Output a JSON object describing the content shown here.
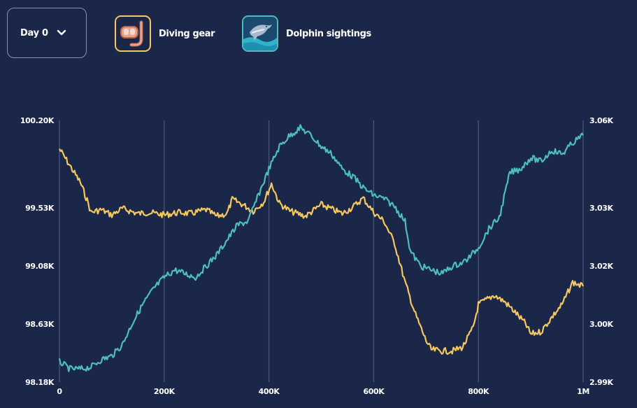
{
  "controls": {
    "day_label": "Day 0"
  },
  "legend": [
    {
      "label": "Diving gear",
      "icon": "snorkel-mask-icon",
      "color": "#f5c75e"
    },
    {
      "label": "Dolphin sightings",
      "icon": "dolphin-icon",
      "color": "#4dbdbd"
    }
  ],
  "chart_data": {
    "type": "line",
    "title": "",
    "xlabel": "",
    "ylabel_left": "",
    "ylabel_right": "",
    "x_ticks": [
      "0",
      "200K",
      "400K",
      "600K",
      "800K",
      "1M"
    ],
    "xlim": [
      0,
      1000000
    ],
    "left_ticks": [
      "100.20K",
      "99.53K",
      "99.08K",
      "98.63K",
      "98.18K"
    ],
    "right_ticks": [
      "3.06K",
      "3.03K",
      "3.02K",
      "3.00K",
      "2.99K"
    ],
    "grid": "vertical",
    "series": [
      {
        "name": "Diving gear",
        "axis": "left",
        "color": "#f5c75e",
        "x": [
          0,
          20000,
          40000,
          55000,
          60000,
          80000,
          100000,
          120000,
          150000,
          170000,
          200000,
          230000,
          250000,
          280000,
          300000,
          320000,
          330000,
          350000,
          370000,
          390000,
          405000,
          420000,
          440000,
          470000,
          500000,
          540000,
          560000,
          580000,
          600000,
          620000,
          640000,
          660000,
          680000,
          700000,
          710000,
          730000,
          750000,
          770000,
          790000,
          800000,
          830000,
          850000,
          870000,
          890000,
          900000,
          920000,
          940000,
          960000,
          980000,
          1000000
        ],
        "y": [
          99.98,
          99.85,
          99.72,
          99.56,
          99.49,
          99.51,
          99.47,
          99.52,
          99.48,
          99.49,
          99.47,
          99.49,
          99.48,
          99.51,
          99.46,
          99.48,
          99.59,
          99.55,
          99.5,
          99.57,
          99.71,
          99.56,
          99.5,
          99.46,
          99.55,
          99.48,
          99.53,
          99.6,
          99.49,
          99.42,
          99.25,
          98.95,
          98.7,
          98.5,
          98.43,
          98.42,
          98.42,
          98.45,
          98.6,
          98.78,
          98.85,
          98.8,
          98.72,
          98.63,
          98.55,
          98.57,
          98.68,
          98.78,
          98.95,
          98.92
        ]
      },
      {
        "name": "Dolphin sightings",
        "axis": "right",
        "color": "#4dbdbd",
        "x": [
          0,
          20000,
          40000,
          60000,
          80000,
          100000,
          120000,
          140000,
          160000,
          180000,
          200000,
          220000,
          240000,
          260000,
          280000,
          300000,
          320000,
          340000,
          360000,
          380000,
          400000,
          420000,
          440000,
          460000,
          480000,
          500000,
          520000,
          540000,
          560000,
          580000,
          600000,
          620000,
          640000,
          660000,
          670000,
          690000,
          710000,
          730000,
          750000,
          770000,
          780000,
          800000,
          820000,
          840000,
          860000,
          880000,
          900000,
          920000,
          940000,
          960000,
          980000,
          1000000
        ],
        "y": [
          2.9955,
          2.9935,
          2.9935,
          2.994,
          2.996,
          2.997,
          3.0,
          3.006,
          3.011,
          3.015,
          3.018,
          3.02,
          3.019,
          3.018,
          3.021,
          3.024,
          3.028,
          3.032,
          3.033,
          3.04,
          3.047,
          3.053,
          3.056,
          3.058,
          3.056,
          3.053,
          3.051,
          3.047,
          3.045,
          3.042,
          3.04,
          3.039,
          3.037,
          3.033,
          3.025,
          3.021,
          3.02,
          3.019,
          3.021,
          3.022,
          3.023,
          3.026,
          3.031,
          3.034,
          3.046,
          3.047,
          3.05,
          3.049,
          3.052,
          3.051,
          3.054,
          3.056
        ]
      }
    ],
    "ylim_left": [
      98.18,
      100.2
    ],
    "ylim_right": [
      2.99,
      3.06
    ]
  }
}
